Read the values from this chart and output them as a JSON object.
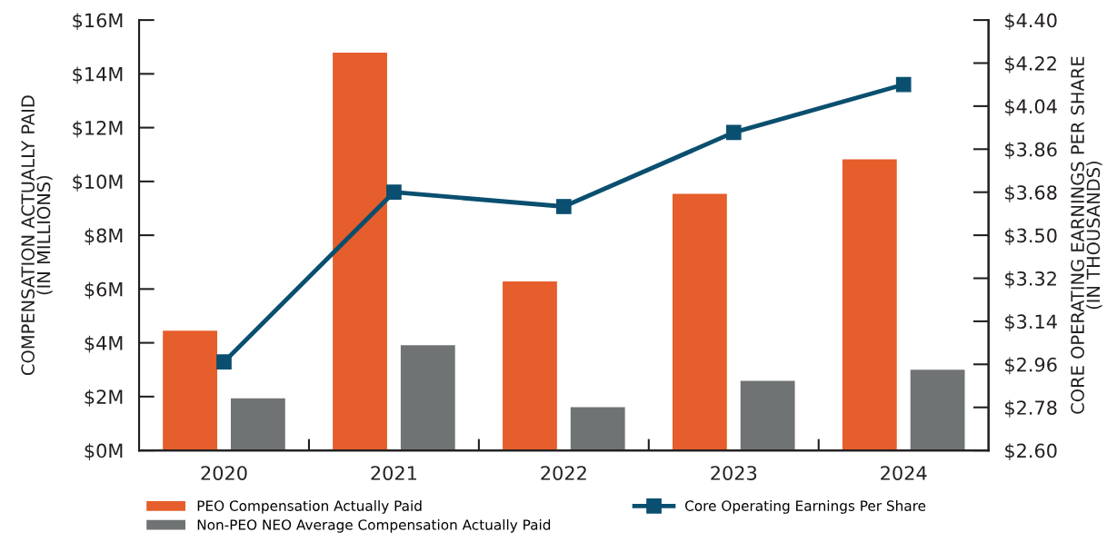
{
  "chart_data": {
    "type": "bar",
    "ylabel": "COMPENSATION ACTUALLY PAID\n(IN MILLIONS)",
    "y2label": "CORE OPERATING EARNINGS PER SHARE\n(IN THOUSANDS)",
    "categories": [
      "2020",
      "2021",
      "2022",
      "2023",
      "2024"
    ],
    "series": [
      {
        "name": "PEO Compensation Actually Paid",
        "color": "#e55e2b",
        "values": [
          4.45,
          14.79,
          6.28,
          9.54,
          10.82
        ]
      },
      {
        "name": "Non-PEO NEO Average Compensation Actually Paid",
        "color": "#707374",
        "values": [
          1.94,
          3.91,
          1.61,
          2.59,
          3.0
        ]
      },
      {
        "name": "Core Operating Earnings Per Share",
        "type": "line",
        "axis": "y2",
        "color": "#0a4f70",
        "marker": "square",
        "values": [
          2.97,
          3.68,
          3.62,
          3.93,
          4.13
        ]
      }
    ],
    "ylim": [
      0,
      16
    ],
    "yticks": [
      {
        "value": 0,
        "label": "$0M"
      },
      {
        "value": 2,
        "label": "$2M"
      },
      {
        "value": 4,
        "label": "$4M"
      },
      {
        "value": 6,
        "label": "$6M"
      },
      {
        "value": 8,
        "label": "$8M"
      },
      {
        "value": 10,
        "label": "$10M"
      },
      {
        "value": 12,
        "label": "$12M"
      },
      {
        "value": 14,
        "label": "$14M"
      },
      {
        "value": 16,
        "label": "$16M"
      }
    ],
    "y2lim": [
      2.6,
      4.4
    ],
    "y2ticks": [
      {
        "value": 2.6,
        "label": "$2.60"
      },
      {
        "value": 2.78,
        "label": "$2.78"
      },
      {
        "value": 2.96,
        "label": "$2.96"
      },
      {
        "value": 3.14,
        "label": "$3.14"
      },
      {
        "value": 3.32,
        "label": "$3.32"
      },
      {
        "value": 3.5,
        "label": "$3.50"
      },
      {
        "value": 3.68,
        "label": "$3.68"
      },
      {
        "value": 3.86,
        "label": "$3.86"
      },
      {
        "value": 4.04,
        "label": "$4.04"
      },
      {
        "value": 4.22,
        "label": "$4.22"
      },
      {
        "value": 4.4,
        "label": "$4.40"
      }
    ],
    "legend": "bottom",
    "grid": false
  }
}
